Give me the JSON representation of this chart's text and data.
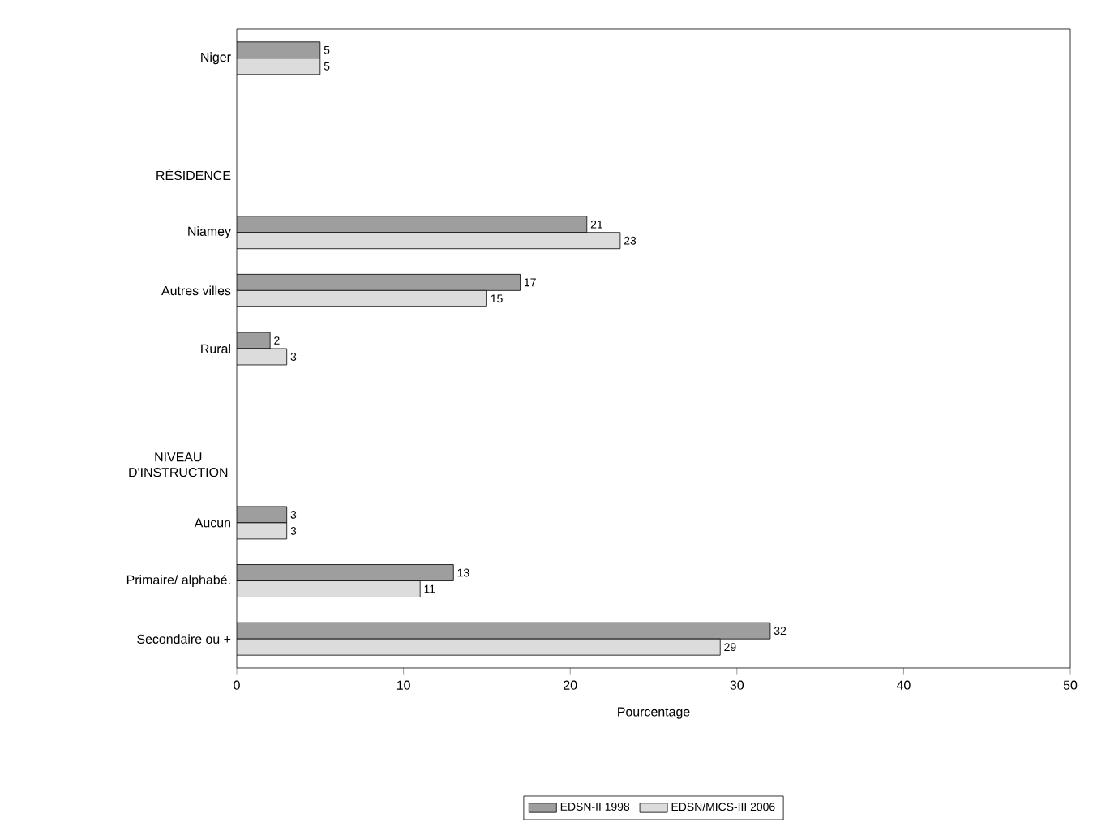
{
  "chart_data": {
    "type": "bar",
    "orientation": "horizontal",
    "xlabel": "Pourcentage",
    "categories": [
      "Niger",
      null,
      "RÉSIDENCE",
      "Niamey",
      "Autres villes",
      "Rural",
      null,
      "NIVEAU D'INSTRUCTION",
      "Aucun",
      "Primaire/ alphabé.",
      "Secondaire ou +"
    ],
    "series": [
      {
        "name": "EDSN-II 1998",
        "color": "#9e9e9e",
        "values": [
          5,
          null,
          null,
          21,
          17,
          2,
          null,
          null,
          3,
          13,
          32
        ]
      },
      {
        "name": "EDSN/MICS-III 2006",
        "color": "#dcdcdc",
        "values": [
          5,
          null,
          null,
          23,
          15,
          3,
          null,
          null,
          3,
          11,
          29
        ]
      }
    ],
    "xlim": [
      0,
      50
    ],
    "xticks": [
      0,
      10,
      20,
      30,
      40,
      50
    ],
    "data_labels": true,
    "legend": "bottom",
    "grid": false
  }
}
